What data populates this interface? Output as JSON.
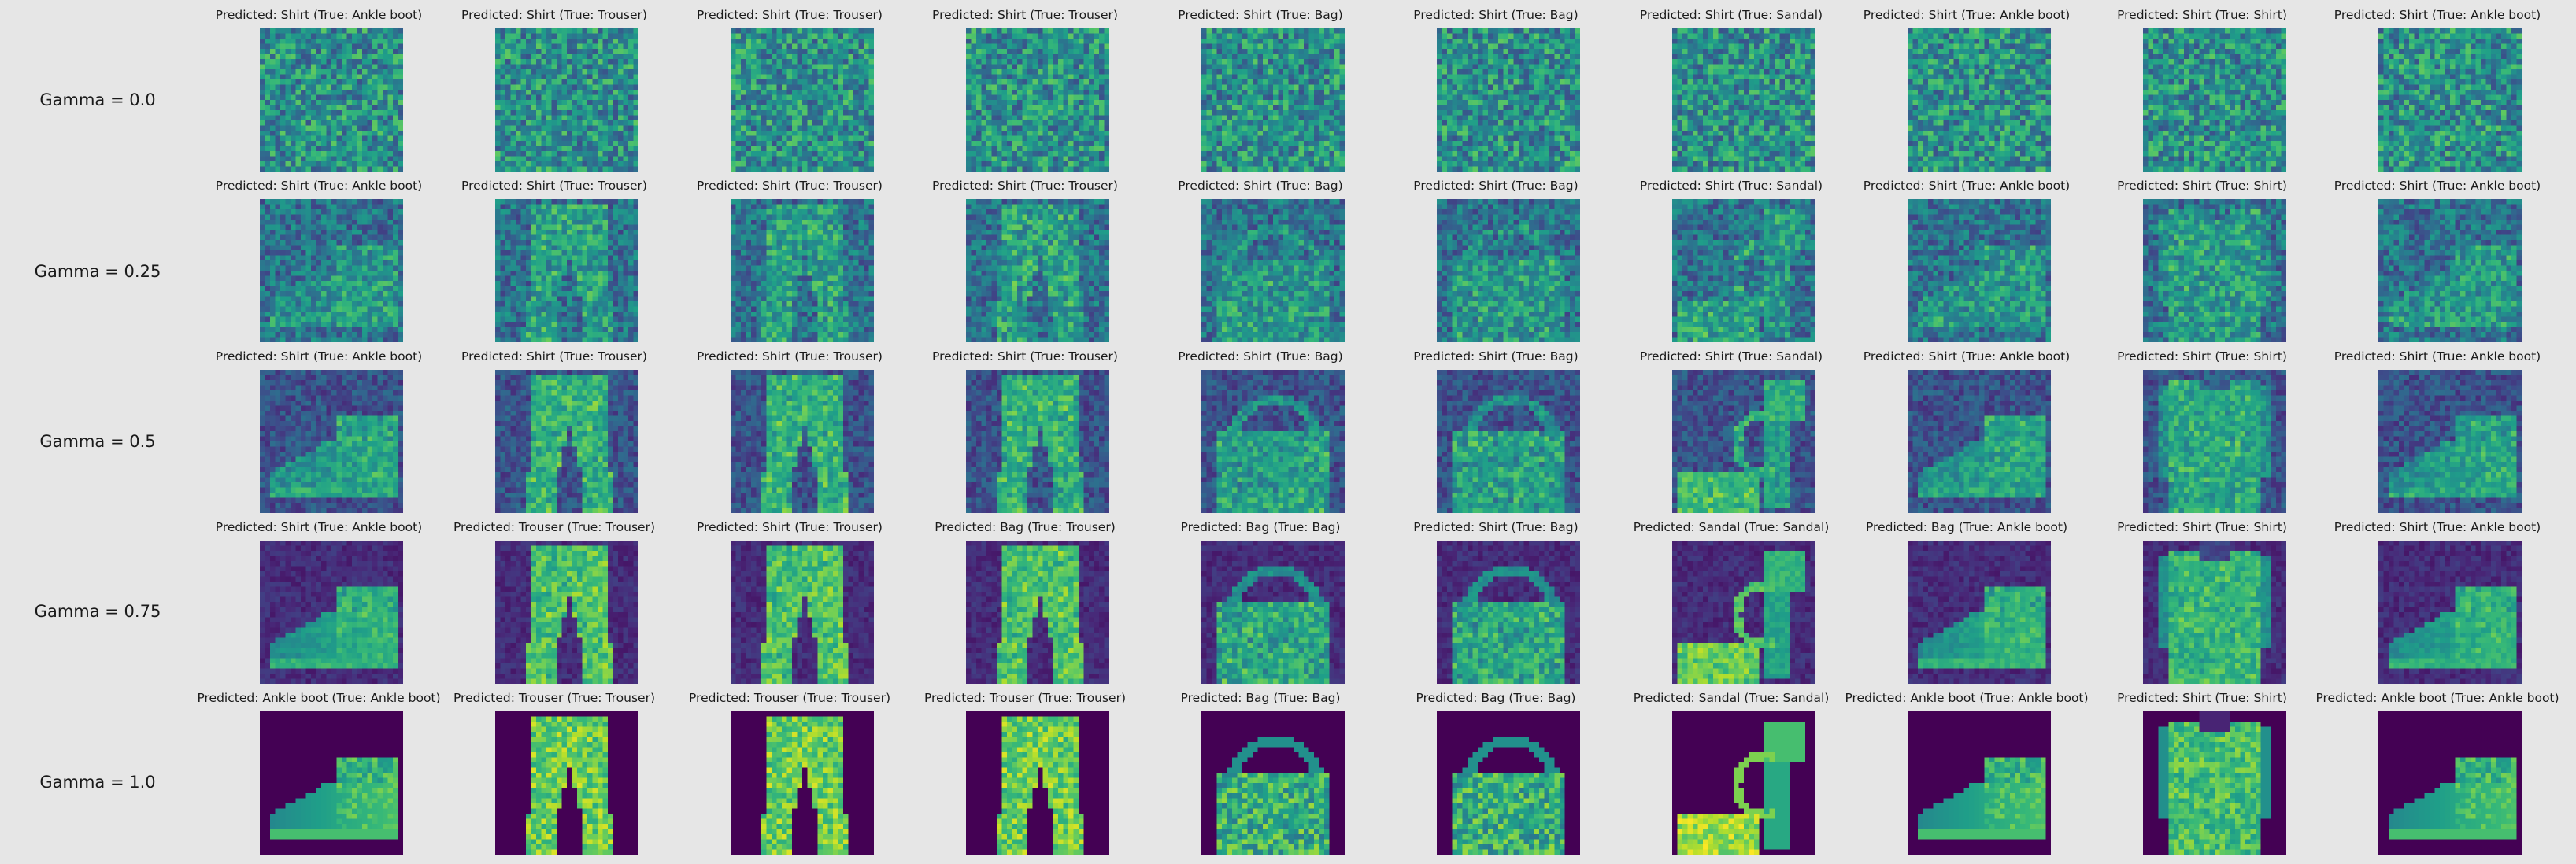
{
  "colormap": "viridis",
  "colors": {
    "background": "#e6e6e6",
    "text": "#1a1a1a"
  },
  "rows": [
    {
      "label": "Gamma = 0.0",
      "gamma": 0.0,
      "panels": [
        {
          "title": "Predicted: Shirt (True: Ankle boot)",
          "predicted": "Shirt",
          "true": "Ankle boot"
        },
        {
          "title": "Predicted: Shirt (True: Trouser)",
          "predicted": "Shirt",
          "true": "Trouser"
        },
        {
          "title": "Predicted: Shirt (True: Trouser)",
          "predicted": "Shirt",
          "true": "Trouser"
        },
        {
          "title": "Predicted: Shirt (True: Trouser)",
          "predicted": "Shirt",
          "true": "Trouser"
        },
        {
          "title": "Predicted: Shirt (True: Bag)",
          "predicted": "Shirt",
          "true": "Bag"
        },
        {
          "title": "Predicted: Shirt (True: Bag)",
          "predicted": "Shirt",
          "true": "Bag"
        },
        {
          "title": "Predicted: Shirt (True: Sandal)",
          "predicted": "Shirt",
          "true": "Sandal"
        },
        {
          "title": "Predicted: Shirt (True: Ankle boot)",
          "predicted": "Shirt",
          "true": "Ankle boot"
        },
        {
          "title": "Predicted: Shirt (True: Shirt)",
          "predicted": "Shirt",
          "true": "Shirt"
        },
        {
          "title": "Predicted: Shirt (True: Ankle boot)",
          "predicted": "Shirt",
          "true": "Ankle boot"
        }
      ]
    },
    {
      "label": "Gamma = 0.25",
      "gamma": 0.25,
      "panels": [
        {
          "title": "Predicted: Shirt (True: Ankle boot)",
          "predicted": "Shirt",
          "true": "Ankle boot"
        },
        {
          "title": "Predicted: Shirt (True: Trouser)",
          "predicted": "Shirt",
          "true": "Trouser"
        },
        {
          "title": "Predicted: Shirt (True: Trouser)",
          "predicted": "Shirt",
          "true": "Trouser"
        },
        {
          "title": "Predicted: Shirt (True: Trouser)",
          "predicted": "Shirt",
          "true": "Trouser"
        },
        {
          "title": "Predicted: Shirt (True: Bag)",
          "predicted": "Shirt",
          "true": "Bag"
        },
        {
          "title": "Predicted: Shirt (True: Bag)",
          "predicted": "Shirt",
          "true": "Bag"
        },
        {
          "title": "Predicted: Shirt (True: Sandal)",
          "predicted": "Shirt",
          "true": "Sandal"
        },
        {
          "title": "Predicted: Shirt (True: Ankle boot)",
          "predicted": "Shirt",
          "true": "Ankle boot"
        },
        {
          "title": "Predicted: Shirt (True: Shirt)",
          "predicted": "Shirt",
          "true": "Shirt"
        },
        {
          "title": "Predicted: Shirt (True: Ankle boot)",
          "predicted": "Shirt",
          "true": "Ankle boot"
        }
      ]
    },
    {
      "label": "Gamma = 0.5",
      "gamma": 0.5,
      "panels": [
        {
          "title": "Predicted: Shirt (True: Ankle boot)",
          "predicted": "Shirt",
          "true": "Ankle boot"
        },
        {
          "title": "Predicted: Shirt (True: Trouser)",
          "predicted": "Shirt",
          "true": "Trouser"
        },
        {
          "title": "Predicted: Shirt (True: Trouser)",
          "predicted": "Shirt",
          "true": "Trouser"
        },
        {
          "title": "Predicted: Shirt (True: Trouser)",
          "predicted": "Shirt",
          "true": "Trouser"
        },
        {
          "title": "Predicted: Shirt (True: Bag)",
          "predicted": "Shirt",
          "true": "Bag"
        },
        {
          "title": "Predicted: Shirt (True: Bag)",
          "predicted": "Shirt",
          "true": "Bag"
        },
        {
          "title": "Predicted: Shirt (True: Sandal)",
          "predicted": "Shirt",
          "true": "Sandal"
        },
        {
          "title": "Predicted: Shirt (True: Ankle boot)",
          "predicted": "Shirt",
          "true": "Ankle boot"
        },
        {
          "title": "Predicted: Shirt (True: Shirt)",
          "predicted": "Shirt",
          "true": "Shirt"
        },
        {
          "title": "Predicted: Shirt (True: Ankle boot)",
          "predicted": "Shirt",
          "true": "Ankle boot"
        }
      ]
    },
    {
      "label": "Gamma = 0.75",
      "gamma": 0.75,
      "panels": [
        {
          "title": "Predicted: Shirt (True: Ankle boot)",
          "predicted": "Shirt",
          "true": "Ankle boot"
        },
        {
          "title": "Predicted: Trouser (True: Trouser)",
          "predicted": "Trouser",
          "true": "Trouser"
        },
        {
          "title": "Predicted: Shirt (True: Trouser)",
          "predicted": "Shirt",
          "true": "Trouser"
        },
        {
          "title": "Predicted: Bag (True: Trouser)",
          "predicted": "Bag",
          "true": "Trouser"
        },
        {
          "title": "Predicted: Bag (True: Bag)",
          "predicted": "Bag",
          "true": "Bag"
        },
        {
          "title": "Predicted: Shirt (True: Bag)",
          "predicted": "Shirt",
          "true": "Bag"
        },
        {
          "title": "Predicted: Sandal (True: Sandal)",
          "predicted": "Sandal",
          "true": "Sandal"
        },
        {
          "title": "Predicted: Bag (True: Ankle boot)",
          "predicted": "Bag",
          "true": "Ankle boot"
        },
        {
          "title": "Predicted: Shirt (True: Shirt)",
          "predicted": "Shirt",
          "true": "Shirt"
        },
        {
          "title": "Predicted: Shirt (True: Ankle boot)",
          "predicted": "Shirt",
          "true": "Ankle boot"
        }
      ]
    },
    {
      "label": "Gamma = 1.0",
      "gamma": 1.0,
      "panels": [
        {
          "title": "Predicted: Ankle boot (True: Ankle boot)",
          "predicted": "Ankle boot",
          "true": "Ankle boot"
        },
        {
          "title": "Predicted: Trouser (True: Trouser)",
          "predicted": "Trouser",
          "true": "Trouser"
        },
        {
          "title": "Predicted: Trouser (True: Trouser)",
          "predicted": "Trouser",
          "true": "Trouser"
        },
        {
          "title": "Predicted: Trouser (True: Trouser)",
          "predicted": "Trouser",
          "true": "Trouser"
        },
        {
          "title": "Predicted: Bag (True: Bag)",
          "predicted": "Bag",
          "true": "Bag"
        },
        {
          "title": "Predicted: Bag (True: Bag)",
          "predicted": "Bag",
          "true": "Bag"
        },
        {
          "title": "Predicted: Sandal (True: Sandal)",
          "predicted": "Sandal",
          "true": "Sandal"
        },
        {
          "title": "Predicted: Ankle boot (True: Ankle boot)",
          "predicted": "Ankle boot",
          "true": "Ankle boot"
        },
        {
          "title": "Predicted: Shirt (True: Shirt)",
          "predicted": "Shirt",
          "true": "Shirt"
        },
        {
          "title": "Predicted: Ankle boot (True: Ankle boot)",
          "predicted": "Ankle boot",
          "true": "Ankle boot"
        }
      ]
    }
  ]
}
